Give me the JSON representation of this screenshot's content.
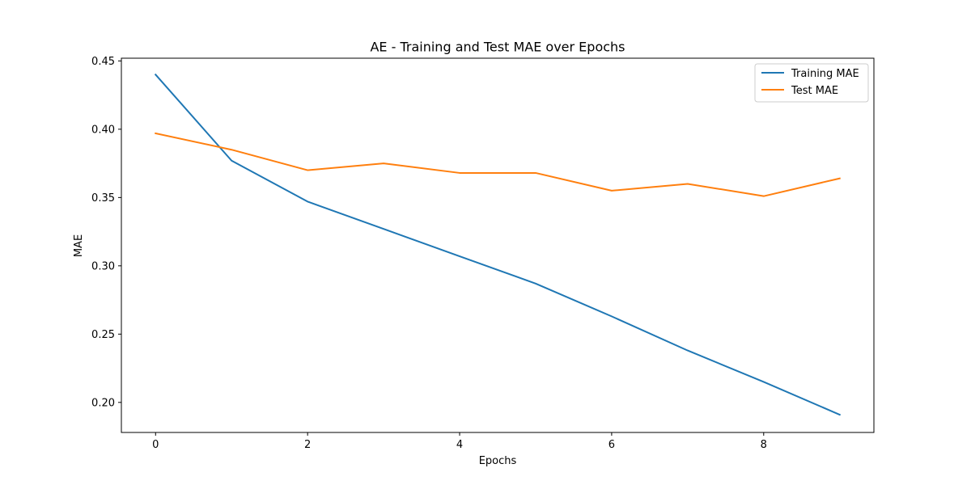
{
  "chart_data": {
    "type": "line",
    "title": "AE - Training and Test MAE over Epochs",
    "xlabel": "Epochs",
    "ylabel": "MAE",
    "xlim": [
      -0.45,
      9.45
    ],
    "ylim": [
      0.178,
      0.452
    ],
    "xticks": [
      0,
      2,
      4,
      6,
      8
    ],
    "xtick_labels": [
      "0",
      "2",
      "4",
      "6",
      "8"
    ],
    "yticks": [
      0.2,
      0.25,
      0.3,
      0.35,
      0.4,
      0.45
    ],
    "ytick_labels": [
      "0.20",
      "0.25",
      "0.30",
      "0.35",
      "0.40",
      "0.45"
    ],
    "grid": false,
    "legend_position": "top-right",
    "x": [
      0,
      1,
      2,
      3,
      4,
      5,
      6,
      7,
      8,
      9
    ],
    "series": [
      {
        "name": "Training MAE",
        "color": "#1f77b4",
        "values": [
          0.44,
          0.377,
          0.347,
          0.327,
          0.307,
          0.287,
          0.263,
          0.238,
          0.215,
          0.191
        ]
      },
      {
        "name": "Test MAE",
        "color": "#ff7f0e",
        "values": [
          0.397,
          0.385,
          0.37,
          0.375,
          0.368,
          0.368,
          0.355,
          0.36,
          0.351,
          0.364
        ]
      }
    ]
  }
}
